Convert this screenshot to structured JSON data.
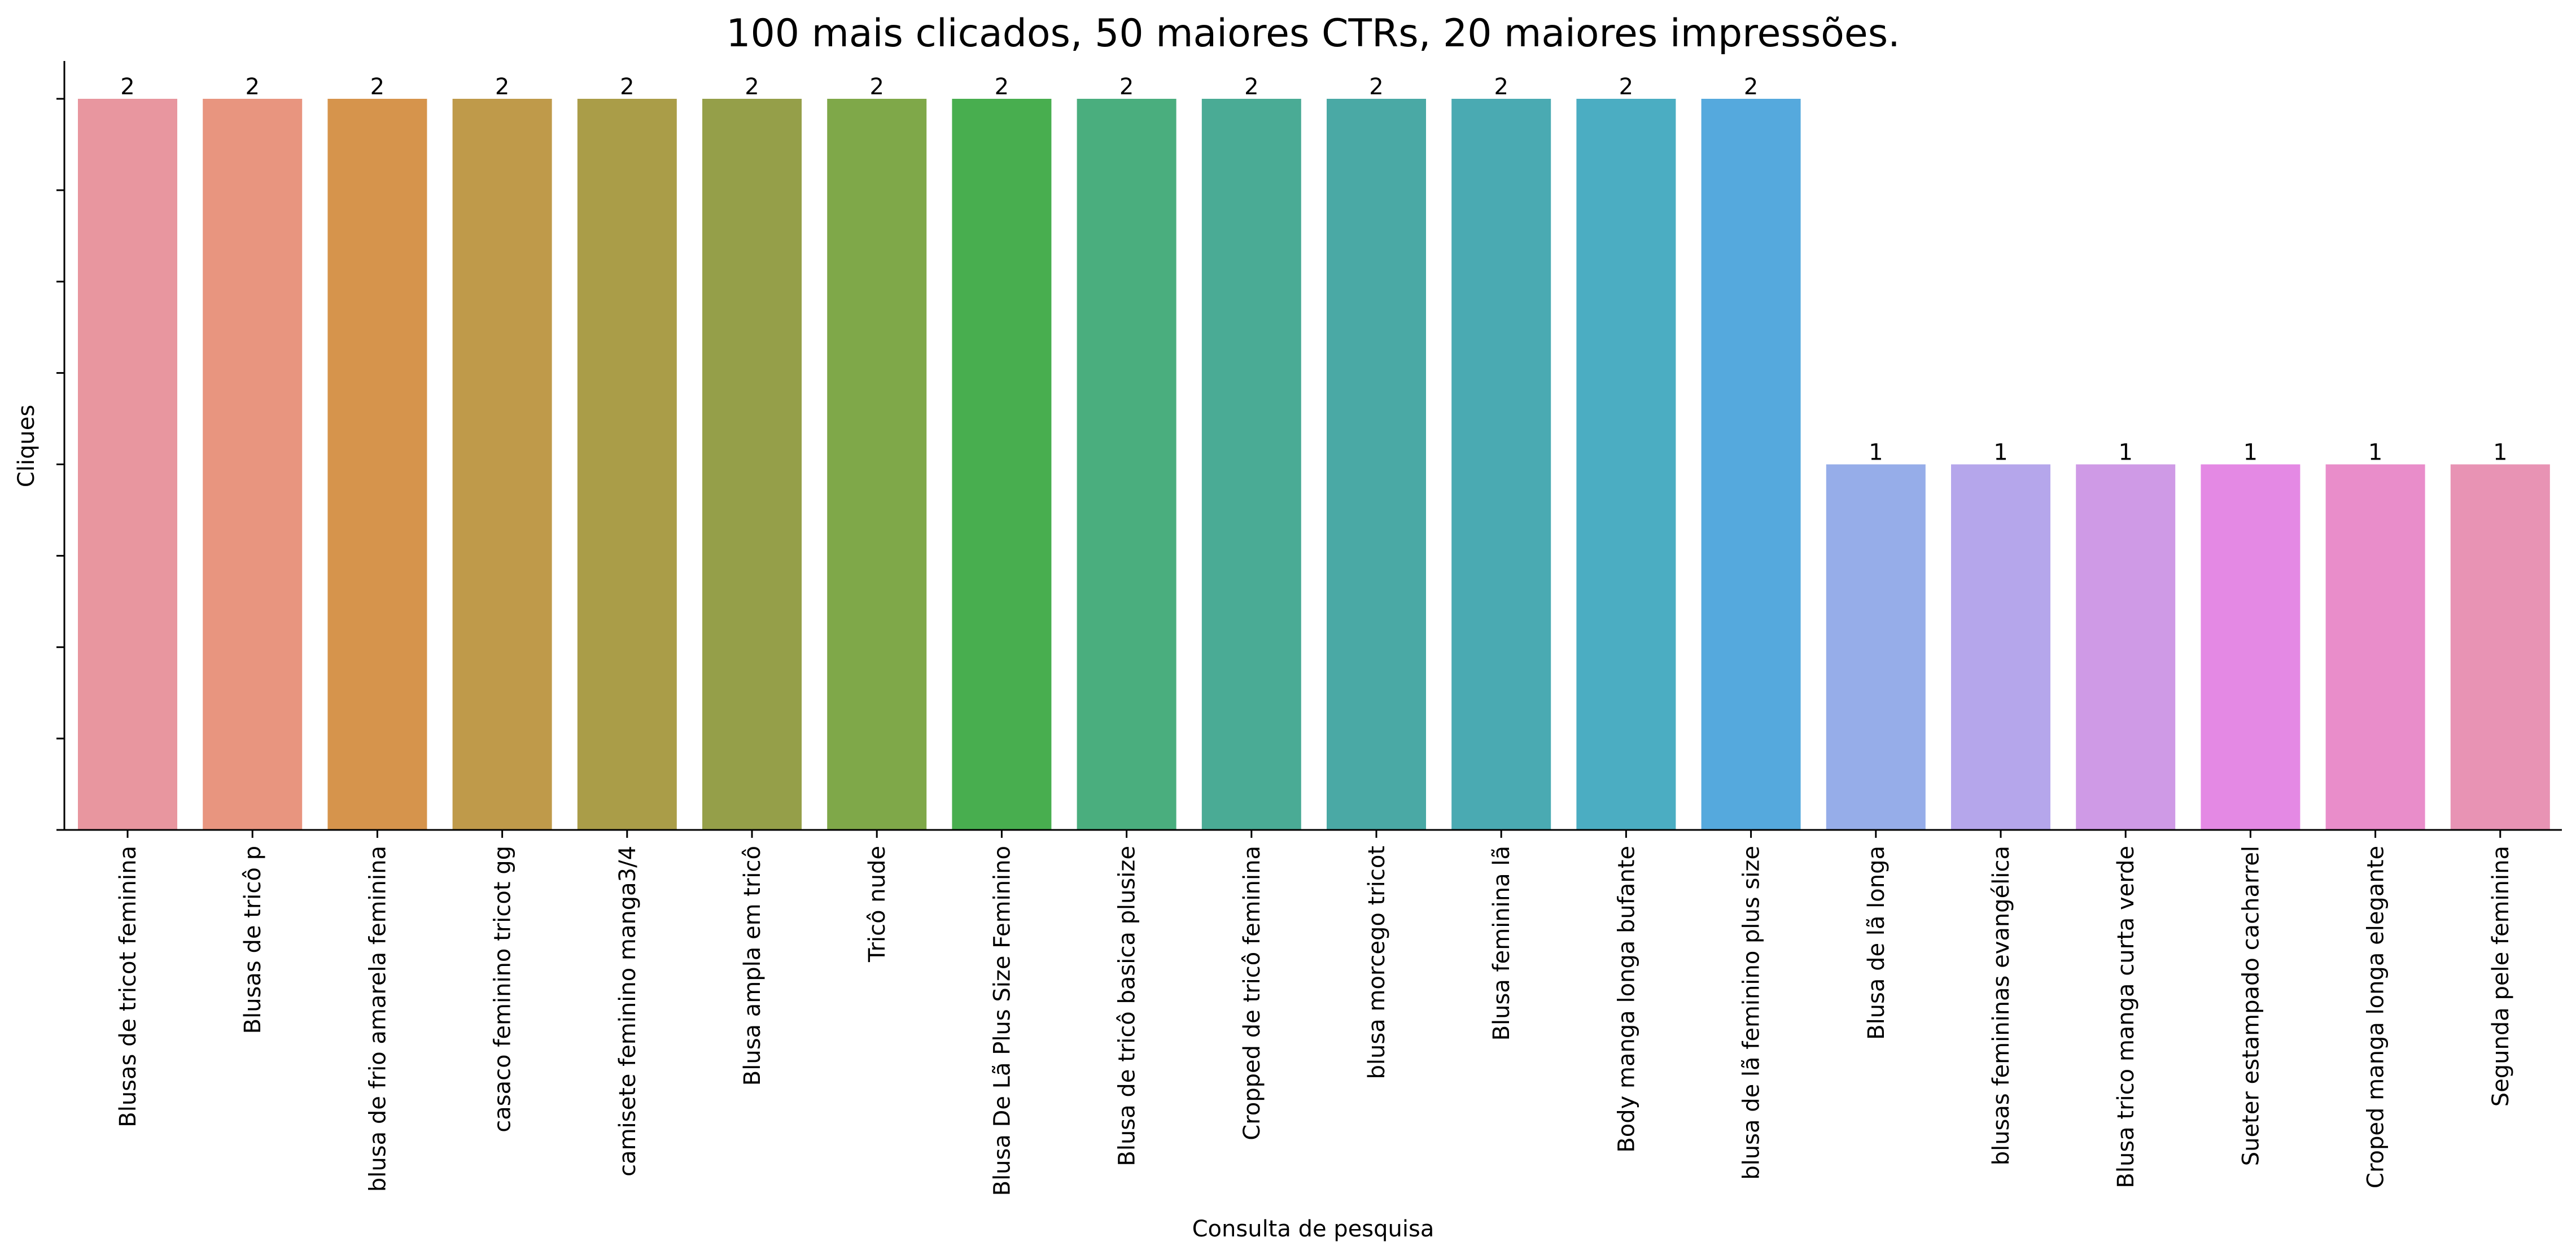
{
  "chart_data": {
    "type": "bar",
    "title": "100 mais clicados, 50 maiores CTRs, 20 maiores impressões.",
    "xlabel": "Consulta de pesquisa",
    "ylabel": "Cliques",
    "ylim": [
      0,
      2.1
    ],
    "y_tick_values": [
      0,
      0.25,
      0.5,
      0.75,
      1.0,
      1.25,
      1.5,
      1.75,
      2.0
    ],
    "y_tick_labels_visible": false,
    "grid": false,
    "legend": "none",
    "categories": [
      "Blusas de tricot feminina",
      "Blusas de tricô p",
      "blusa de frio amarela feminina",
      "casaco feminino tricot gg",
      "camisete feminino manga3/4",
      "Blusa ampla em tricô",
      "Tricô nude",
      "Blusa De Lã Plus Size Feminino",
      "Blusa de tricô basica plusize",
      "Cropped de tricô feminina",
      "blusa morcego tricot",
      "Blusa feminina lã",
      "Body manga longa bufante",
      "blusa de lã feminino plus size",
      "Blusa de lã longa",
      "blusas femininas evangélica",
      "Blusa trico manga curta verde",
      "Sueter estampado cacharrel",
      "Croped manga longa elegante",
      "Segunda pele feminina"
    ],
    "values": [
      2,
      2,
      2,
      2,
      2,
      2,
      2,
      2,
      2,
      2,
      2,
      2,
      2,
      2,
      1,
      1,
      1,
      1,
      1,
      1
    ],
    "data_labels": [
      "2",
      "2",
      "2",
      "2",
      "2",
      "2",
      "2",
      "2",
      "2",
      "2",
      "2",
      "2",
      "2",
      "2",
      "1",
      "1",
      "1",
      "1",
      "1",
      "1"
    ],
    "colors": [
      "#e8969f",
      "#e8957f",
      "#d6944c",
      "#bf9a4a",
      "#aa9d48",
      "#959f49",
      "#7fa849",
      "#48ae4f",
      "#4aae7e",
      "#4aab95",
      "#4aa9a5",
      "#4aaab2",
      "#4badc2",
      "#55a9dd",
      "#96ade9",
      "#b5a6eb",
      "#cf9ae6",
      "#e489e4",
      "#e98dca",
      "#e893b4"
    ]
  }
}
